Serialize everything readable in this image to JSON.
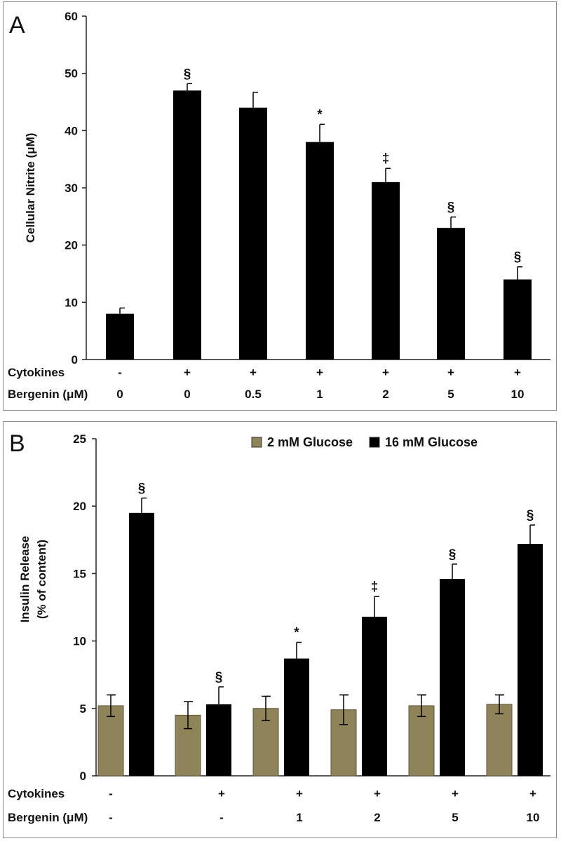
{
  "colors": {
    "black_bar": "#000000",
    "olive_bar": "#8f8359",
    "axis": "#222222"
  },
  "chart_data": [
    {
      "panel": "A",
      "type": "bar",
      "ylabel": "Cellular Nitrite (μM)",
      "ylim": [
        0,
        60
      ],
      "yticks": [
        "0",
        "10",
        "20",
        "30",
        "40",
        "50",
        "60"
      ],
      "row_labels": [
        "Cytokines",
        "Bergenin (μM)"
      ],
      "cytokines": [
        "-",
        "+",
        "+",
        "+",
        "+",
        "+",
        "+"
      ],
      "bergenin": [
        "0",
        "0",
        "0.5",
        "1",
        "2",
        "5",
        "10"
      ],
      "values": [
        8,
        47,
        44,
        38,
        31,
        23,
        14
      ],
      "errors": [
        1,
        1.2,
        2.7,
        3.1,
        2.4,
        1.9,
        2.2
      ],
      "significance": [
        "",
        "§",
        "",
        "*",
        "‡",
        "§",
        "§"
      ]
    },
    {
      "panel": "B",
      "type": "bar",
      "ylabel_lines": [
        "Insulin Release",
        "(% of content)"
      ],
      "ylim": [
        0,
        25
      ],
      "yticks": [
        "0",
        "5",
        "10",
        "15",
        "20",
        "25"
      ],
      "row_labels": [
        "Cytokines",
        "Bergenin (μM)"
      ],
      "cytokines": [
        "-",
        "+",
        "+",
        "+",
        "+",
        "+"
      ],
      "bergenin": [
        "-",
        "-",
        "1",
        "2",
        "5",
        "10"
      ],
      "legend": [
        "2 mM Glucose",
        "16 mM Glucose"
      ],
      "legend_position": "top-right",
      "series": [
        {
          "name": "2 mM Glucose",
          "values": [
            5.2,
            4.5,
            5.0,
            4.9,
            5.2,
            5.3
          ],
          "errors": [
            0.8,
            1.0,
            0.9,
            1.1,
            0.8,
            0.7
          ],
          "significance": [
            "",
            "",
            "",
            "",
            "",
            ""
          ]
        },
        {
          "name": "16 mM Glucose",
          "values": [
            19.5,
            5.3,
            8.7,
            11.8,
            14.6,
            17.2
          ],
          "errors": [
            1.1,
            1.3,
            1.2,
            1.5,
            1.1,
            1.4
          ],
          "significance": [
            "§",
            "§",
            "*",
            "‡",
            "§",
            "§"
          ]
        }
      ]
    }
  ],
  "panel_letters": [
    "A",
    "B"
  ]
}
